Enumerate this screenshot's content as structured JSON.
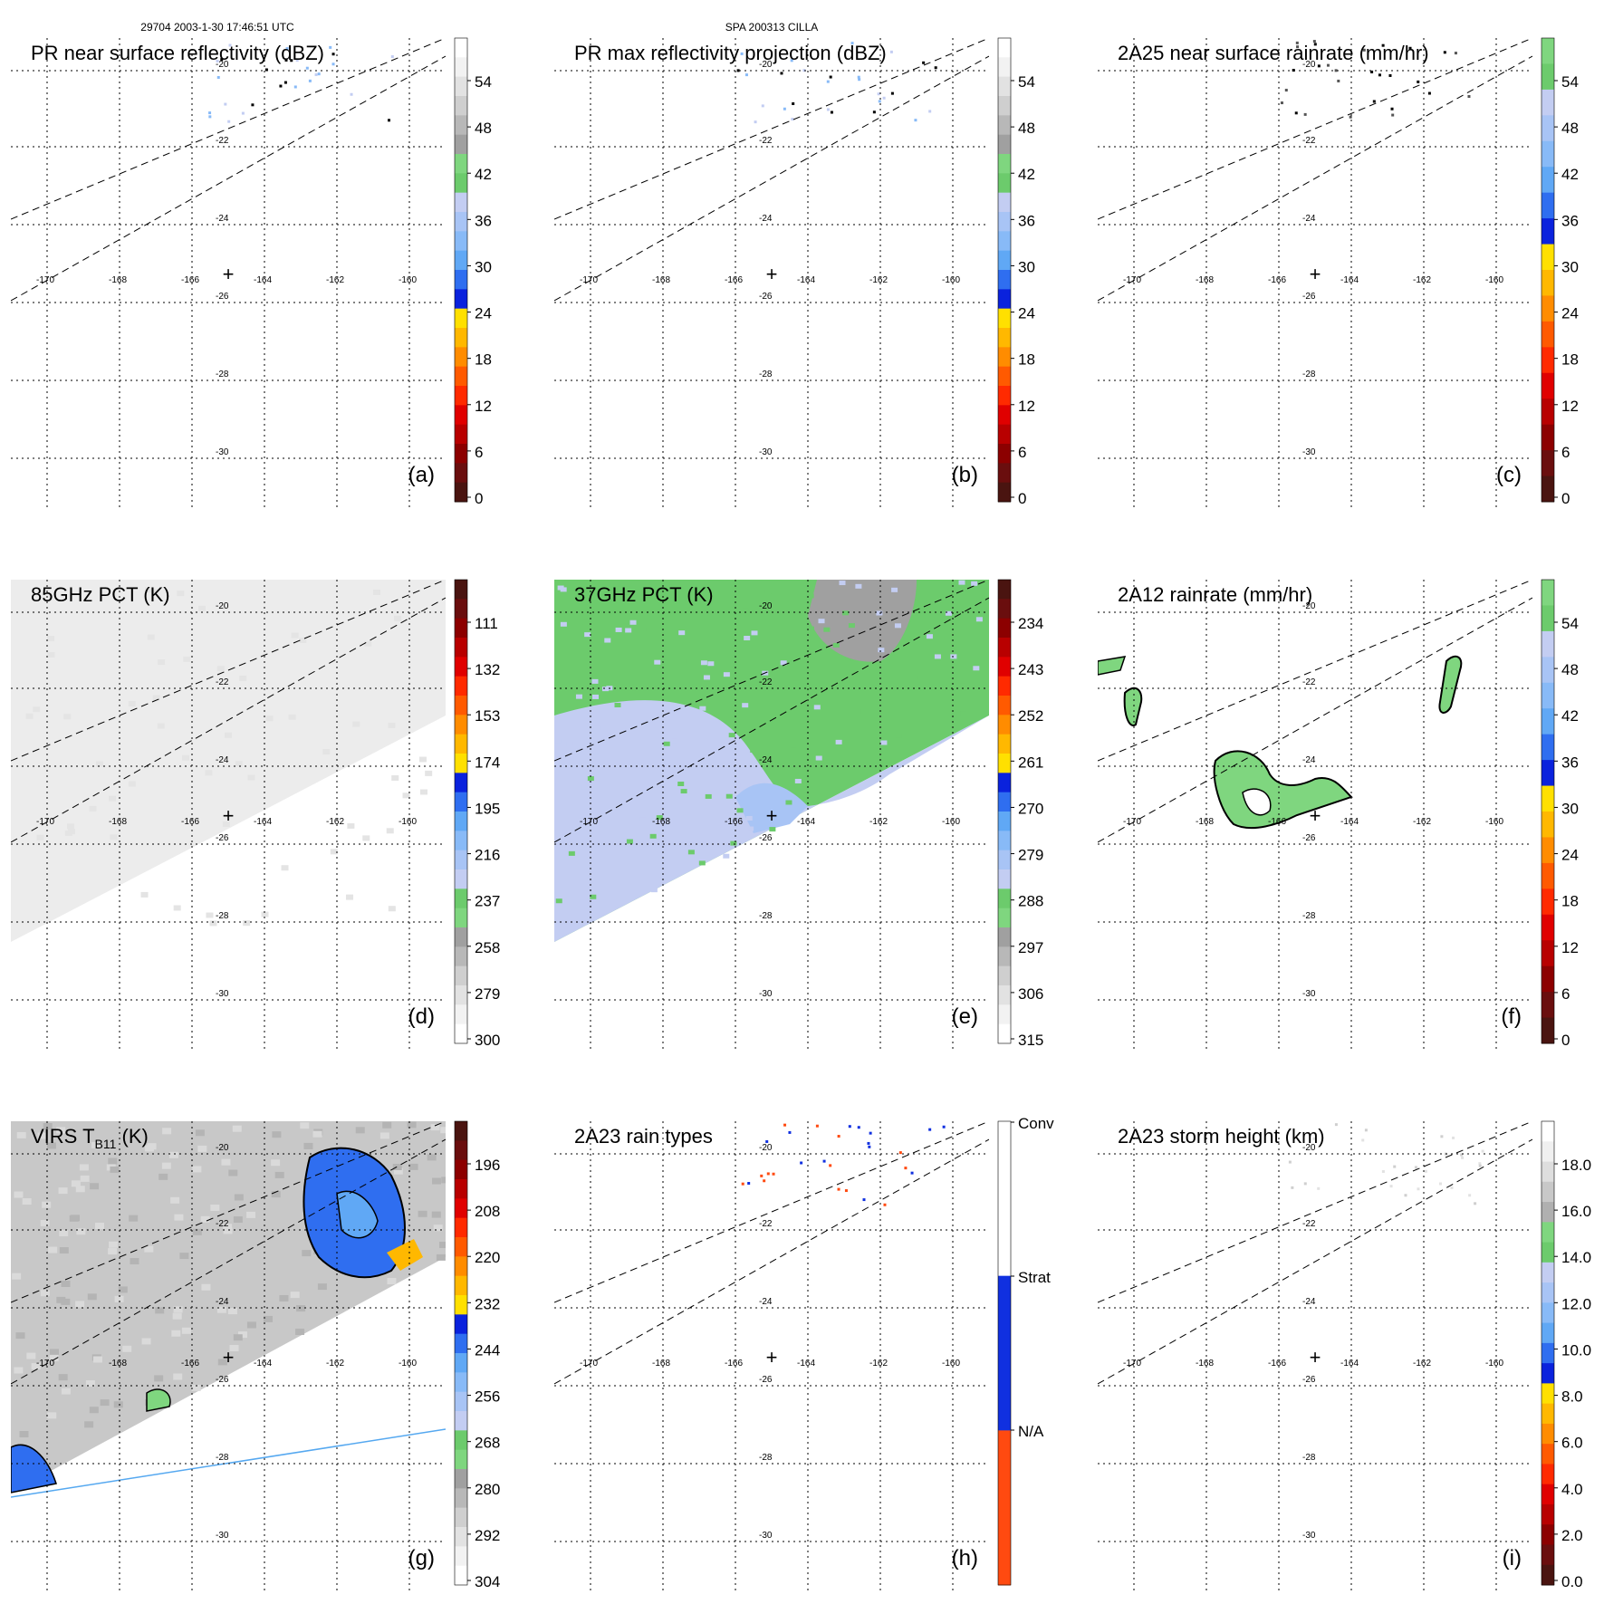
{
  "header": {
    "left": "29704 2003-1-30 17:46:51 UTC",
    "center": "SPA 200313 CILLA"
  },
  "palettes": {
    "dbz": [
      "#ffffff",
      "#f2f2f2",
      "#e2e2e2",
      "#cfcfcf",
      "#b8b8b8",
      "#a0a0a0",
      "#7fd67f",
      "#6ccb6c",
      "#c3cdf2",
      "#a8c4f5",
      "#88baf7",
      "#60a8f5",
      "#2f6ef0",
      "#0a22dd",
      "#ffe000",
      "#ffb800",
      "#ff8c00",
      "#ff5a00",
      "#ff2a00",
      "#e00000",
      "#b80000",
      "#8c0000",
      "#6a0e0e",
      "#4a1410"
    ],
    "rain": [
      "#7fd67f",
      "#6ccb6c",
      "#c3cdf2",
      "#a8c4f5",
      "#88baf7",
      "#60a8f5",
      "#2f6ef0",
      "#0a22dd",
      "#ffe000",
      "#ffb800",
      "#ff8c00",
      "#ff5a00",
      "#ff2a00",
      "#e00000",
      "#b80000",
      "#8c0000",
      "#6a0e0e",
      "#4a1410"
    ],
    "pct": [
      "#4a1410",
      "#6a0e0e",
      "#8c0000",
      "#b80000",
      "#e00000",
      "#ff2a00",
      "#ff5a00",
      "#ff8c00",
      "#ffb800",
      "#ffe000",
      "#0a22dd",
      "#2f6ef0",
      "#60a8f5",
      "#88baf7",
      "#a8c4f5",
      "#c3cdf2",
      "#6ccb6c",
      "#7fd67f",
      "#a0a0a0",
      "#b8b8b8",
      "#cfcfcf",
      "#e2e2e2",
      "#f2f2f2",
      "#ffffff"
    ],
    "raintype": [
      "#ffffff",
      "#ffffff",
      "#ffffff",
      "#1030e0",
      "#1030e0",
      "#1030e0",
      "#ff4a10",
      "#ff4a10",
      "#ff4a10"
    ],
    "height": [
      "#ffffff",
      "#f0f0f0",
      "#dedede",
      "#c8c8c8",
      "#b0b0b0",
      "#7fd67f",
      "#6ccb6c",
      "#c3cdf2",
      "#a8c4f5",
      "#88baf7",
      "#60a8f5",
      "#2f6ef0",
      "#0a22dd",
      "#ffe000",
      "#ffb800",
      "#ff8c00",
      "#ff5a00",
      "#ff2a00",
      "#e00000",
      "#b80000",
      "#8c0000",
      "#6a0e0e",
      "#4a1410"
    ]
  },
  "grid": {
    "lon_labels": [
      "-170",
      "-168",
      "-166",
      "-164",
      "-162",
      "-160"
    ],
    "lat_labels": [
      "-20",
      "-22",
      "-24",
      "-26",
      "-28",
      "-30"
    ],
    "marker": "+"
  },
  "panels": [
    {
      "title": "PR near surface reflectivity (dBZ)",
      "tag": "(a)",
      "palette": "dbz",
      "ticks": [
        "54",
        "48",
        "42",
        "36",
        "30",
        "24",
        "18",
        "12",
        "6",
        "0"
      ],
      "fill": "none"
    },
    {
      "title": "PR max reflectivity projection (dBZ)",
      "tag": "(b)",
      "palette": "dbz",
      "ticks": [
        "54",
        "48",
        "42",
        "36",
        "30",
        "24",
        "18",
        "12",
        "6",
        "0"
      ],
      "fill": "none"
    },
    {
      "title": "2A25 near surface rainrate (mm/hr)",
      "tag": "(c)",
      "palette": "rain",
      "ticks": [
        "54",
        "48",
        "42",
        "36",
        "30",
        "24",
        "18",
        "12",
        "6",
        "0"
      ],
      "fill": "none"
    },
    {
      "title": "85GHz PCT (K)",
      "tag": "(d)",
      "palette": "pct",
      "ticks": [
        "111",
        "132",
        "153",
        "174",
        "195",
        "216",
        "237",
        "258",
        "279",
        "300"
      ],
      "fill": "gray"
    },
    {
      "title": "37GHz PCT (K)",
      "tag": "(e)",
      "palette": "pct",
      "ticks": [
        "234",
        "243",
        "252",
        "261",
        "270",
        "279",
        "288",
        "297",
        "306",
        "315"
      ],
      "fill": "pct37"
    },
    {
      "title": "2A12 rainrate (mm/hr)",
      "tag": "(f)",
      "palette": "rain",
      "ticks": [
        "54",
        "48",
        "42",
        "36",
        "30",
        "24",
        "18",
        "12",
        "6",
        "0"
      ],
      "fill": "rain"
    },
    {
      "title_pre": "VIRS T",
      "title_sub": "B11",
      "title_post": " (K)",
      "tag": "(g)",
      "palette": "pct",
      "ticks": [
        "196",
        "208",
        "220",
        "232",
        "244",
        "256",
        "268",
        "280",
        "292",
        "304"
      ],
      "fill": "virs"
    },
    {
      "title": "2A23 rain types",
      "tag": "(h)",
      "palette": "raintype",
      "ticks": [
        "Conv",
        "Strat",
        "N/A"
      ],
      "fill": "none"
    },
    {
      "title": "2A23 storm height (km)",
      "tag": "(i)",
      "palette": "height",
      "ticks": [
        "18.0",
        "16.0",
        "14.0",
        "12.0",
        "10.0",
        "8.0",
        "6.0",
        "4.0",
        "2.0",
        "0.0"
      ],
      "fill": "none"
    }
  ]
}
